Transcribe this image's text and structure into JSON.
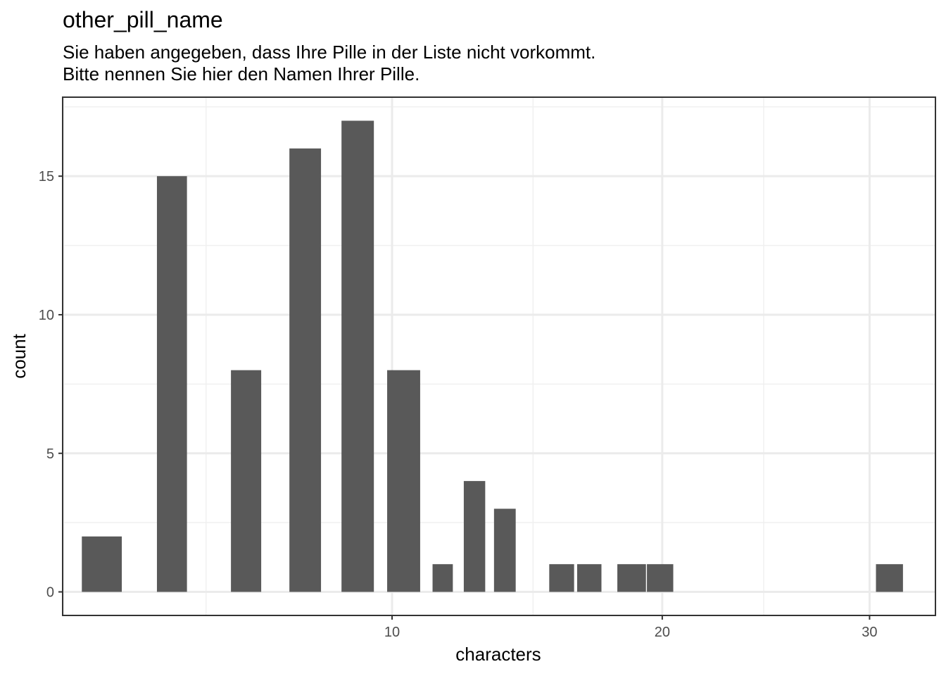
{
  "chart_data": {
    "type": "bar",
    "title": "other_pill_name",
    "subtitle_lines": [
      "Sie haben angegeben, dass Ihre Pille in der Liste nicht vorkommt.",
      "Bitte nennen Sie hier den Namen Ihrer Pille."
    ],
    "xlabel": "characters",
    "ylabel": "count",
    "x_scale": "sqrt",
    "xlim": [
      2.45,
      33.6
    ],
    "ylim": [
      -0.85,
      17.85
    ],
    "x_ticks": [
      10,
      20,
      30
    ],
    "x_tick_labels": [
      "10",
      "20",
      "30"
    ],
    "x_minor_ticks": [
      2.47,
      5.11,
      14.79,
      24.64
    ],
    "y_ticks": [
      0,
      5,
      10,
      15
    ],
    "y_tick_labels": [
      "0",
      "5",
      "10",
      "15"
    ],
    "y_minor_ticks": [
      2.5,
      7.5,
      12.5,
      17.5
    ],
    "grid": true,
    "bar_color": "#595959",
    "bars": [
      {
        "x_start": 2.75,
        "x_end": 3.43,
        "value": 2
      },
      {
        "x_start": 4.09,
        "x_end": 4.7,
        "value": 15
      },
      {
        "x_start": 5.67,
        "x_end": 6.39,
        "value": 8
      },
      {
        "x_start": 7.1,
        "x_end": 7.94,
        "value": 16
      },
      {
        "x_start": 8.51,
        "x_end": 9.45,
        "value": 17
      },
      {
        "x_start": 9.85,
        "x_end": 10.88,
        "value": 8
      },
      {
        "x_start": 11.28,
        "x_end": 11.95,
        "value": 1
      },
      {
        "x_start": 12.32,
        "x_end": 13.06,
        "value": 4
      },
      {
        "x_start": 13.37,
        "x_end": 14.15,
        "value": 3
      },
      {
        "x_start": 15.4,
        "x_end": 16.36,
        "value": 1
      },
      {
        "x_start": 16.48,
        "x_end": 17.45,
        "value": 1
      },
      {
        "x_start": 18.1,
        "x_end": 19.3,
        "value": 1
      },
      {
        "x_start": 19.34,
        "x_end": 20.48,
        "value": 1
      },
      {
        "x_start": 30.34,
        "x_end": 31.8,
        "value": 1
      }
    ]
  }
}
